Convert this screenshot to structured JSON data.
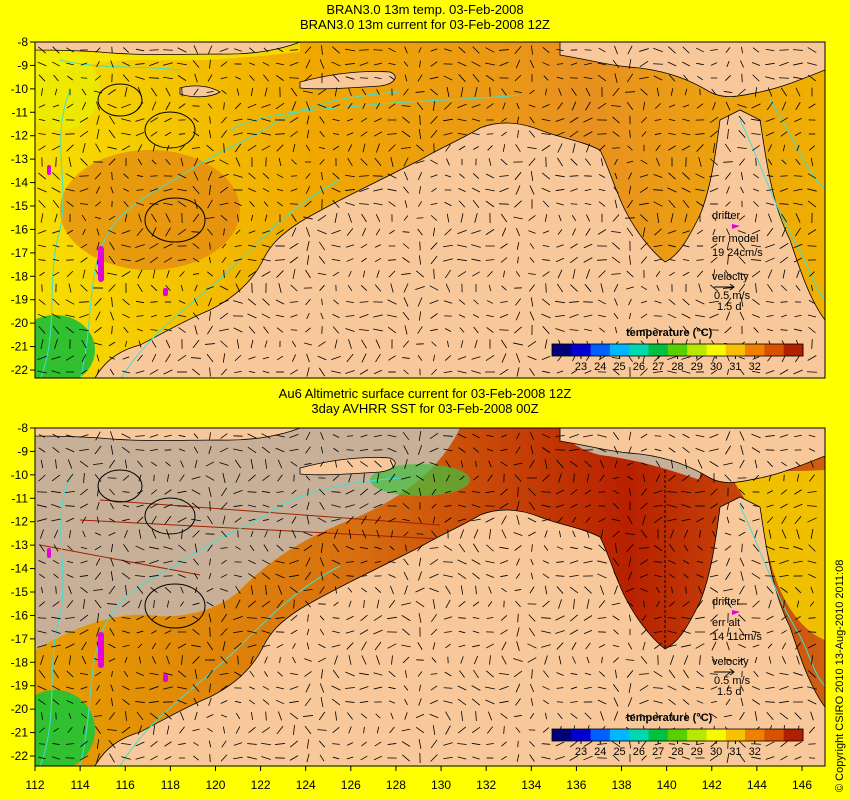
{
  "panels": [
    {
      "title_lines": [
        "BRAN3.0 13m temp. 03-Feb-2008",
        "BRAN3.0 13m current for 03-Feb-2008 12Z"
      ],
      "drifter_label": "drifter",
      "err_label": "err model",
      "err_value": "19 24cm/s",
      "velocity_label": "velocity",
      "velocity_value": "0.5 m/s",
      "duration": "1.5 d",
      "colorbar_title": "temperature (°C)"
    },
    {
      "title_lines": [
        "Au6 Altimetric surface current for 03-Feb-2008 12Z",
        "3day AVHRR SST for 03-Feb-2008 00Z"
      ],
      "drifter_label": "drifter",
      "err_label": "err alt",
      "err_value": "14 11cm/s",
      "velocity_label": "velocity",
      "velocity_value": "0.5 m/s",
      "duration": "1.5 d",
      "colorbar_title": "temperature (°C)"
    }
  ],
  "colorbar": {
    "ticks": [
      "23",
      "24",
      "25",
      "26",
      "27",
      "28",
      "29",
      "30",
      "31",
      "32"
    ],
    "colors": [
      "#00007a",
      "#0000d0",
      "#0060ff",
      "#00b8ff",
      "#00d8b0",
      "#00c040",
      "#58d000",
      "#b8e800",
      "#f8f800",
      "#f8c000",
      "#f08000",
      "#d85000",
      "#b02000"
    ]
  },
  "axes": {
    "lat_ticks": [
      "-8",
      "-9",
      "-10",
      "-11",
      "-12",
      "-13",
      "-14",
      "-15",
      "-16",
      "-17",
      "-18",
      "-19",
      "-20",
      "-21",
      "-22"
    ],
    "lon_ticks": [
      "112",
      "114",
      "116",
      "118",
      "120",
      "122",
      "124",
      "126",
      "128",
      "130",
      "132",
      "134",
      "136",
      "138",
      "140",
      "142",
      "144",
      "146"
    ]
  },
  "copyright": "© Copyright CSIRO 2010  13-Aug-2010 2011:08",
  "colors": {
    "land": "#f8c89a",
    "coast": "#000000",
    "contour": "#40e0d0",
    "arrow": "#000000",
    "drifter": "#e000e0",
    "nodata": "#c8b098",
    "background": "#ffff00"
  }
}
